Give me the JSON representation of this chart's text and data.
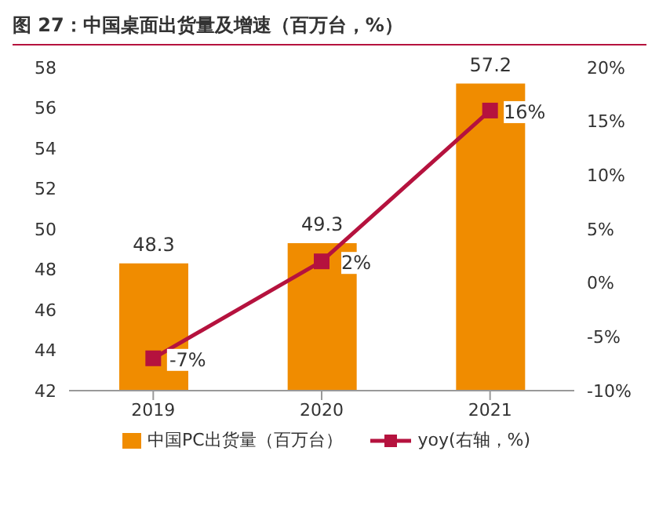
{
  "chart_data": {
    "type": "bar",
    "title": "图 27：中国桌面出货量及增速（百万台，%）",
    "categories": [
      "2019",
      "2020",
      "2021"
    ],
    "series": [
      {
        "name": "中国PC出货量（百万台）",
        "color": "#f08c00",
        "values": [
          48.3,
          49.3,
          57.2
        ],
        "value_labels": [
          "48.3",
          "49.3",
          "57.2"
        ]
      },
      {
        "name": "yoy(右轴，%)",
        "type": "line",
        "axis": "y2",
        "color": "#b5123e",
        "values": [
          -7,
          2,
          16
        ],
        "value_labels": [
          "-7%",
          "2%",
          "16%"
        ],
        "marker": "square"
      }
    ],
    "ylim": [
      42,
      58
    ],
    "yticks": [
      42,
      44,
      46,
      48,
      50,
      52,
      54,
      56,
      58
    ],
    "y2lim": [
      -10,
      20
    ],
    "y2ticks": [
      {
        "value": -10,
        "label": "-10%"
      },
      {
        "value": -5,
        "label": "-5%"
      },
      {
        "value": 0,
        "label": "0%"
      },
      {
        "value": 5,
        "label": "5%"
      },
      {
        "value": 10,
        "label": "10%"
      },
      {
        "value": 15,
        "label": "15%"
      },
      {
        "value": 20,
        "label": "20%"
      }
    ],
    "grid": false,
    "legend": "bottom"
  }
}
